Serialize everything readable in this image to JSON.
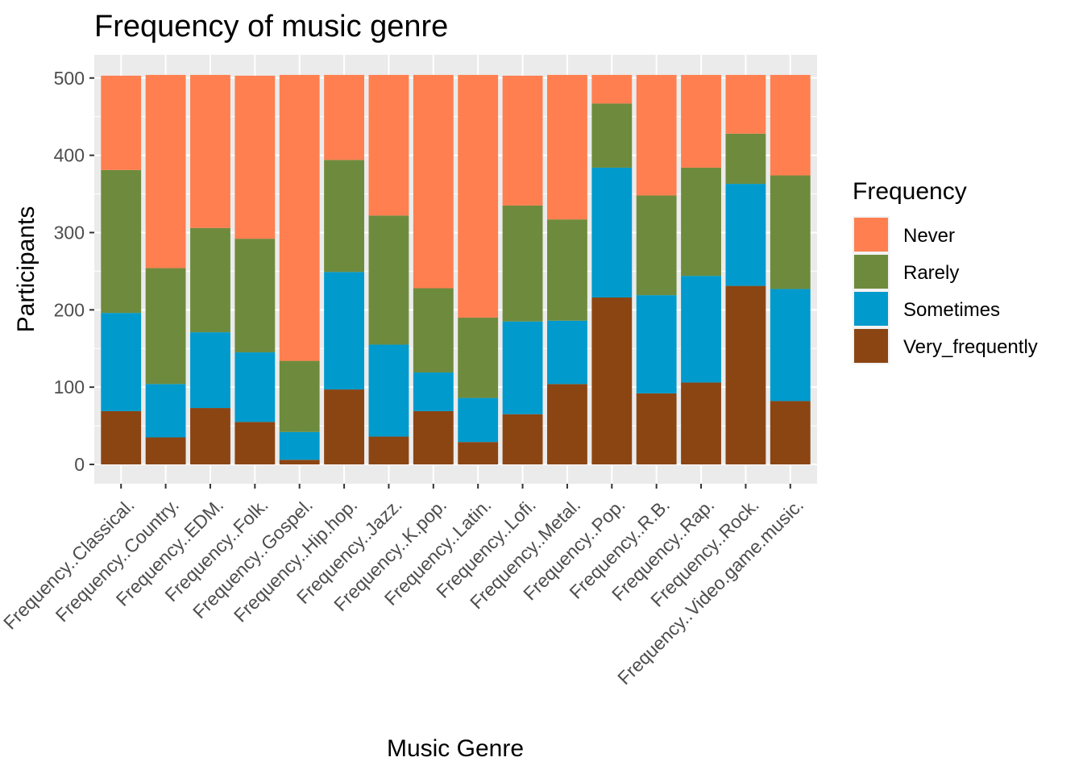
{
  "chart_data": {
    "type": "bar",
    "stacked": true,
    "title": "Frequency of music genre",
    "xlabel": "Music Genre",
    "ylabel": "Participants",
    "ylim": [
      -25,
      530
    ],
    "yticks": [
      0,
      100,
      200,
      300,
      400,
      500
    ],
    "grid": true,
    "legend": {
      "title": "Frequency",
      "position": "right"
    },
    "categories": [
      "Frequency..Classical.",
      "Frequency..Country.",
      "Frequency..EDM.",
      "Frequency..Folk.",
      "Frequency..Gospel.",
      "Frequency..Hip.hop.",
      "Frequency..Jazz.",
      "Frequency..K.pop.",
      "Frequency..Latin.",
      "Frequency..Lofi.",
      "Frequency..Metal.",
      "Frequency..Pop.",
      "Frequency..R.B.",
      "Frequency..Rap.",
      "Frequency..Rock.",
      "Frequency..Video.game.music."
    ],
    "series": [
      {
        "name": "Never",
        "color": "#FF7F50",
        "values": [
          122,
          250,
          198,
          211,
          370,
          110,
          182,
          276,
          314,
          168,
          187,
          37,
          156,
          120,
          76,
          130
        ]
      },
      {
        "name": "Rarely",
        "color": "#6E8B3D",
        "values": [
          185,
          150,
          135,
          147,
          92,
          145,
          167,
          109,
          104,
          150,
          131,
          83,
          129,
          140,
          65,
          147
        ]
      },
      {
        "name": "Sometimes",
        "color": "#009ACD",
        "values": [
          127,
          69,
          98,
          90,
          36,
          152,
          119,
          50,
          57,
          120,
          82,
          168,
          127,
          138,
          132,
          145
        ]
      },
      {
        "name": "Very_frequently",
        "color": "#8B4513",
        "values": [
          69,
          35,
          73,
          55,
          6,
          97,
          36,
          69,
          29,
          65,
          104,
          216,
          92,
          106,
          231,
          82
        ]
      }
    ]
  }
}
